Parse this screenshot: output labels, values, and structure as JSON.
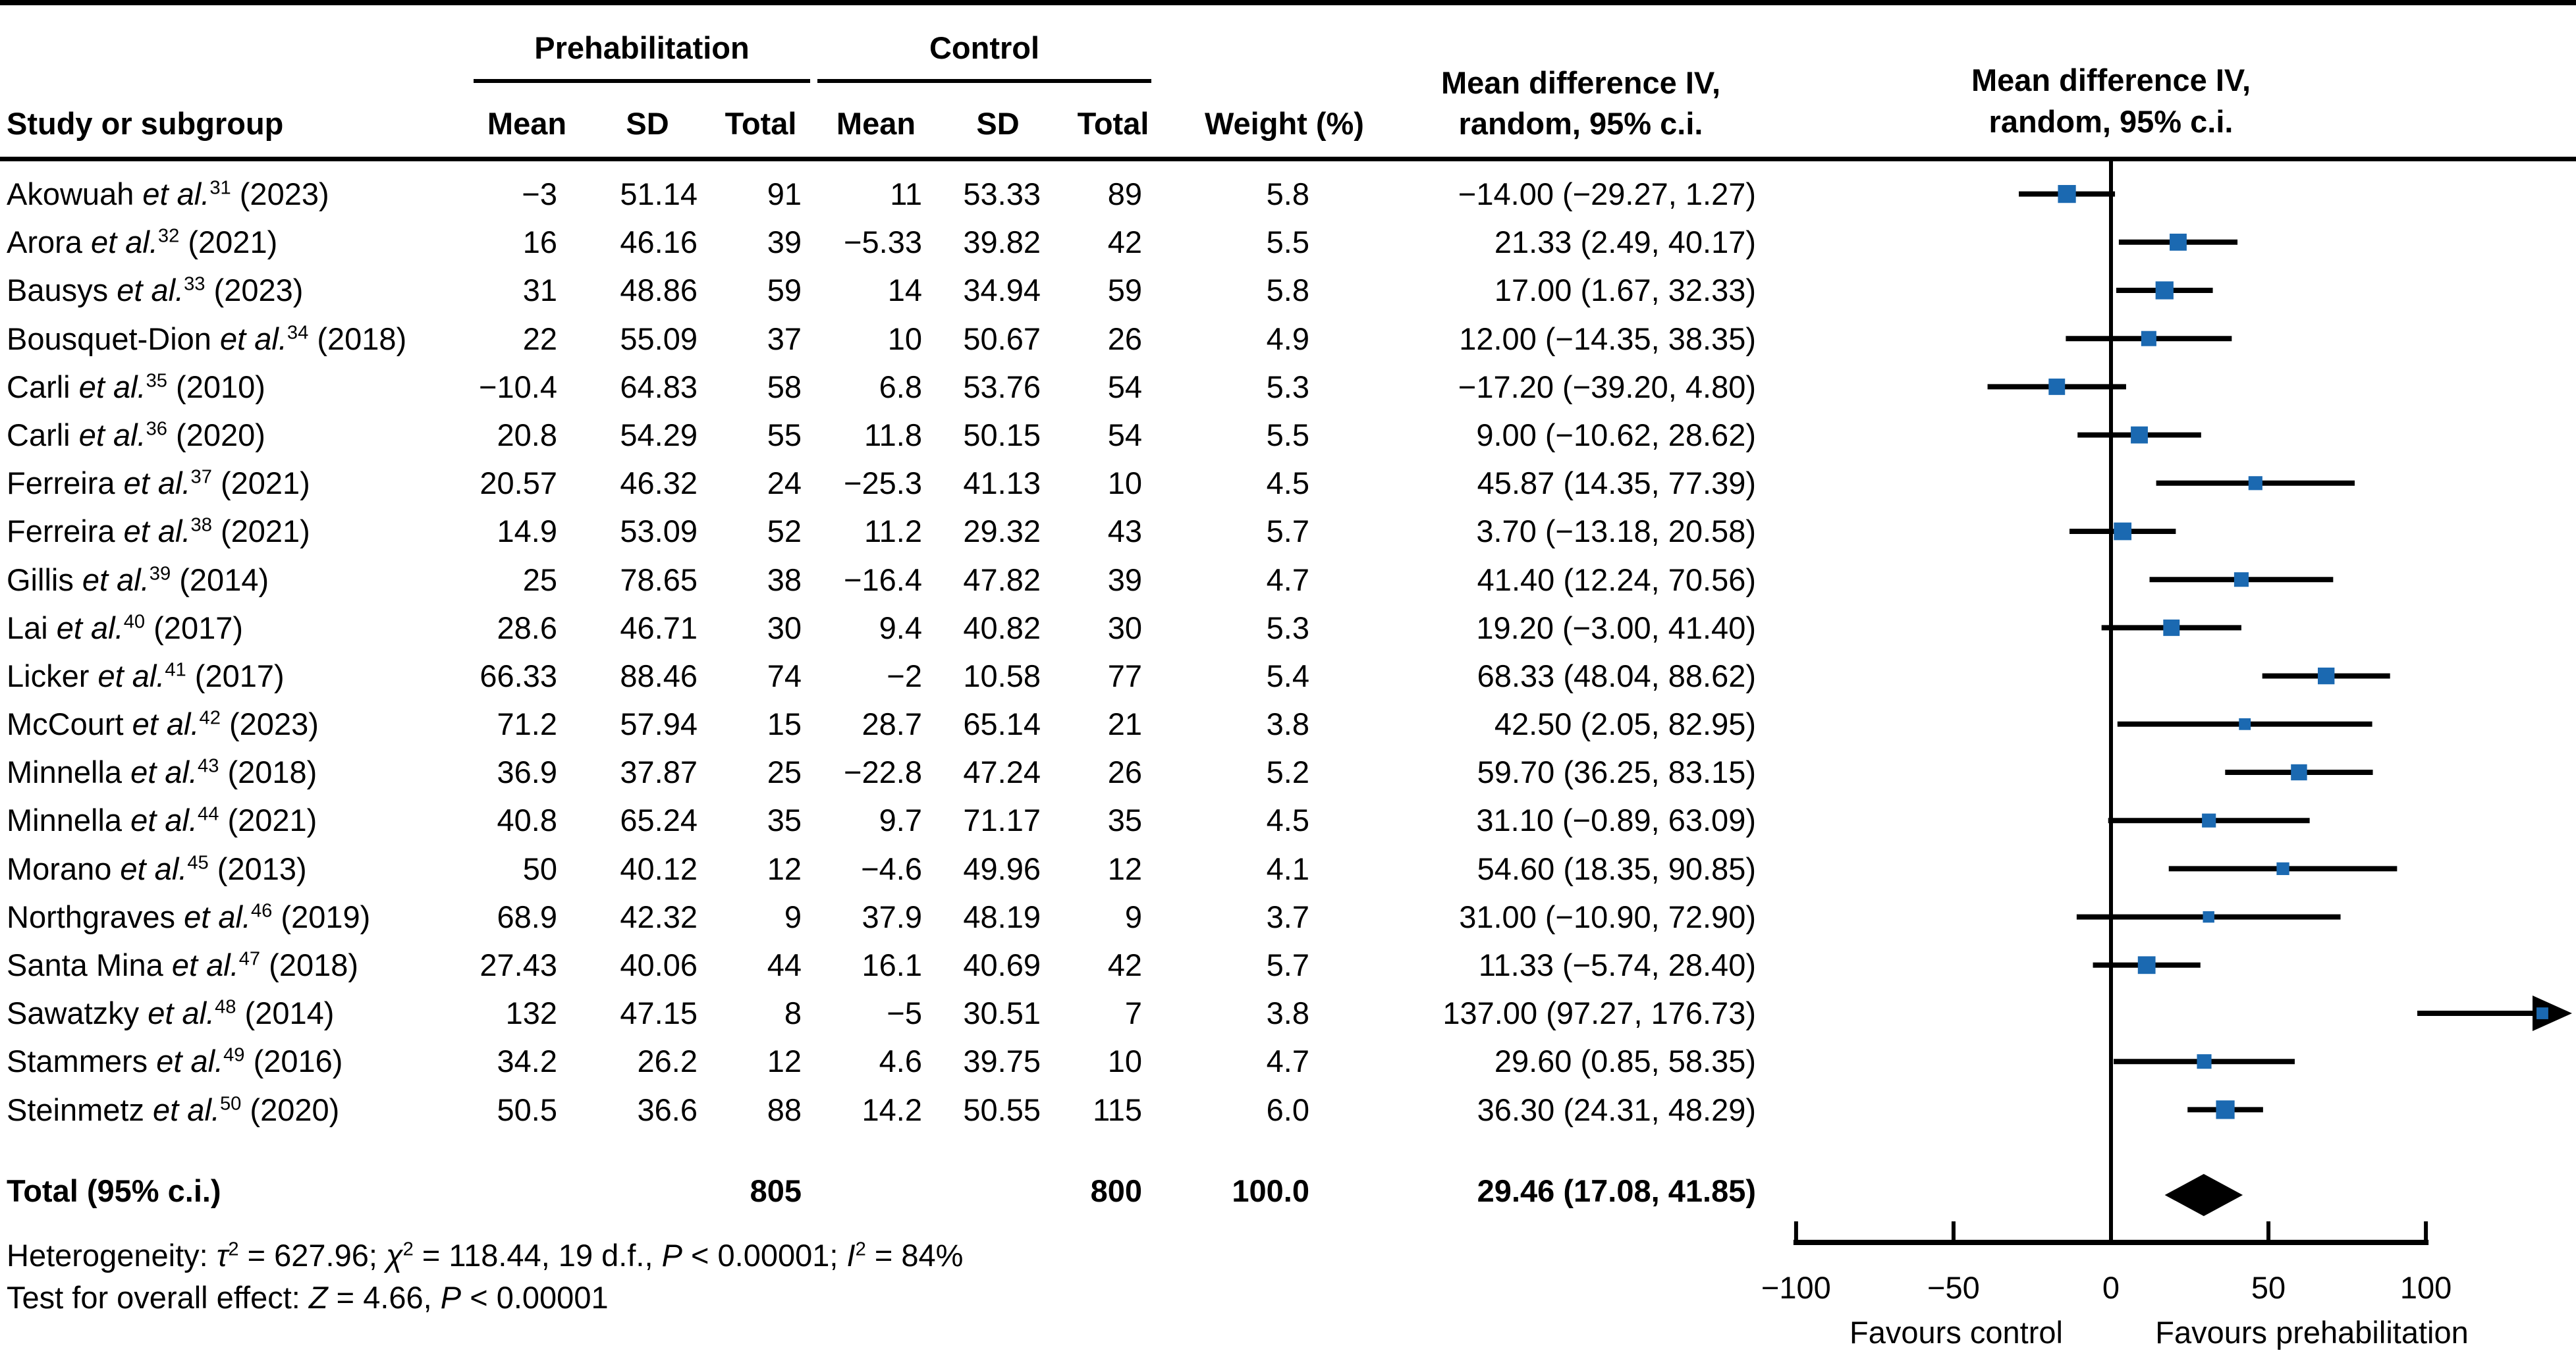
{
  "chart_data": {
    "type": "forest",
    "table_headers": {
      "study": "Study or subgroup",
      "group_prehab": "Prehabilitation",
      "group_control": "Control",
      "mean": "Mean",
      "sd": "SD",
      "total": "Total",
      "weight": "Weight (%)",
      "md_col_line1": "Mean difference IV,",
      "md_col_line2": "random, 95% c.i."
    },
    "plot_header_line1": "Mean difference IV,",
    "plot_header_line2": "random, 95% c.i.",
    "marker_color": "#1b69b1",
    "x_axis": {
      "range": [
        -100,
        100
      ],
      "ticks": [
        -100,
        -50,
        0,
        50,
        100
      ],
      "tick_labels": [
        "−100",
        "−50",
        "0",
        "50",
        "100"
      ],
      "favours_left": "Favours control",
      "favours_right": "Favours prehabilitation"
    },
    "studies": [
      {
        "name": "Akowuah",
        "ref": "31",
        "year": "2023",
        "mean1": "−3",
        "sd1": "51.14",
        "total1": "91",
        "mean2": "11",
        "sd2": "53.33",
        "total2": "89",
        "weight_text": "5.8",
        "md_text": "−14.00 (−29.27, 1.27)",
        "md": -14.0,
        "lo": -29.27,
        "hi": 1.27,
        "weight": 5.8
      },
      {
        "name": "Arora",
        "ref": "32",
        "year": "2021",
        "mean1": "16",
        "sd1": "46.16",
        "total1": "39",
        "mean2": "−5.33",
        "sd2": "39.82",
        "total2": "42",
        "weight_text": "5.5",
        "md_text": "21.33 (2.49, 40.17)",
        "md": 21.33,
        "lo": 2.49,
        "hi": 40.17,
        "weight": 5.5
      },
      {
        "name": "Bausys",
        "ref": "33",
        "year": "2023",
        "mean1": "31",
        "sd1": "48.86",
        "total1": "59",
        "mean2": "14",
        "sd2": "34.94",
        "total2": "59",
        "weight_text": "5.8",
        "md_text": "17.00 (1.67, 32.33)",
        "md": 17.0,
        "lo": 1.67,
        "hi": 32.33,
        "weight": 5.8
      },
      {
        "name": "Bousquet-Dion",
        "ref": "34",
        "year": "2018",
        "mean1": "22",
        "sd1": "55.09",
        "total1": "37",
        "mean2": "10",
        "sd2": "50.67",
        "total2": "26",
        "weight_text": "4.9",
        "md_text": "12.00 (−14.35, 38.35)",
        "md": 12.0,
        "lo": -14.35,
        "hi": 38.35,
        "weight": 4.9
      },
      {
        "name": "Carli",
        "ref": "35",
        "year": "2010",
        "mean1": "−10.4",
        "sd1": "64.83",
        "total1": "58",
        "mean2": "6.8",
        "sd2": "53.76",
        "total2": "54",
        "weight_text": "5.3",
        "md_text": "−17.20 (−39.20, 4.80)",
        "md": -17.2,
        "lo": -39.2,
        "hi": 4.8,
        "weight": 5.3
      },
      {
        "name": "Carli",
        "ref": "36",
        "year": "2020",
        "mean1": "20.8",
        "sd1": "54.29",
        "total1": "55",
        "mean2": "11.8",
        "sd2": "50.15",
        "total2": "54",
        "weight_text": "5.5",
        "md_text": "9.00 (−10.62, 28.62)",
        "md": 9.0,
        "lo": -10.62,
        "hi": 28.62,
        "weight": 5.5
      },
      {
        "name": "Ferreira",
        "ref": "37",
        "year": "2021",
        "mean1": "20.57",
        "sd1": "46.32",
        "total1": "24",
        "mean2": "−25.3",
        "sd2": "41.13",
        "total2": "10",
        "weight_text": "4.5",
        "md_text": "45.87 (14.35, 77.39)",
        "md": 45.87,
        "lo": 14.35,
        "hi": 77.39,
        "weight": 4.5
      },
      {
        "name": "Ferreira",
        "ref": "38",
        "year": "2021",
        "mean1": "14.9",
        "sd1": "53.09",
        "total1": "52",
        "mean2": "11.2",
        "sd2": "29.32",
        "total2": "43",
        "weight_text": "5.7",
        "md_text": "3.70 (−13.18, 20.58)",
        "md": 3.7,
        "lo": -13.18,
        "hi": 20.58,
        "weight": 5.7
      },
      {
        "name": "Gillis",
        "ref": "39",
        "year": "2014",
        "mean1": "25",
        "sd1": "78.65",
        "total1": "38",
        "mean2": "−16.4",
        "sd2": "47.82",
        "total2": "39",
        "weight_text": "4.7",
        "md_text": "41.40 (12.24, 70.56)",
        "md": 41.4,
        "lo": 12.24,
        "hi": 70.56,
        "weight": 4.7
      },
      {
        "name": "Lai",
        "ref": "40",
        "year": "2017",
        "mean1": "28.6",
        "sd1": "46.71",
        "total1": "30",
        "mean2": "9.4",
        "sd2": "40.82",
        "total2": "30",
        "weight_text": "5.3",
        "md_text": "19.20 (−3.00, 41.40)",
        "md": 19.2,
        "lo": -3.0,
        "hi": 41.4,
        "weight": 5.3
      },
      {
        "name": "Licker",
        "ref": "41",
        "year": "2017",
        "mean1": "66.33",
        "sd1": "88.46",
        "total1": "74",
        "mean2": "−2",
        "sd2": "10.58",
        "total2": "77",
        "weight_text": "5.4",
        "md_text": "68.33 (48.04, 88.62)",
        "md": 68.33,
        "lo": 48.04,
        "hi": 88.62,
        "weight": 5.4
      },
      {
        "name": "McCourt",
        "ref": "42",
        "year": "2023",
        "mean1": "71.2",
        "sd1": "57.94",
        "total1": "15",
        "mean2": "28.7",
        "sd2": "65.14",
        "total2": "21",
        "weight_text": "3.8",
        "md_text": "42.50 (2.05, 82.95)",
        "md": 42.5,
        "lo": 2.05,
        "hi": 82.95,
        "weight": 3.8
      },
      {
        "name": "Minnella",
        "ref": "43",
        "year": "2018",
        "mean1": "36.9",
        "sd1": "37.87",
        "total1": "25",
        "mean2": "−22.8",
        "sd2": "47.24",
        "total2": "26",
        "weight_text": "5.2",
        "md_text": "59.70 (36.25, 83.15)",
        "md": 59.7,
        "lo": 36.25,
        "hi": 83.15,
        "weight": 5.2
      },
      {
        "name": "Minnella",
        "ref": "44",
        "year": "2021",
        "mean1": "40.8",
        "sd1": "65.24",
        "total1": "35",
        "mean2": "9.7",
        "sd2": "71.17",
        "total2": "35",
        "weight_text": "4.5",
        "md_text": "31.10 (−0.89, 63.09)",
        "md": 31.1,
        "lo": -0.89,
        "hi": 63.09,
        "weight": 4.5
      },
      {
        "name": "Morano",
        "ref": "45",
        "year": "2013",
        "mean1": "50",
        "sd1": "40.12",
        "total1": "12",
        "mean2": "−4.6",
        "sd2": "49.96",
        "total2": "12",
        "weight_text": "4.1",
        "md_text": "54.60 (18.35, 90.85)",
        "md": 54.6,
        "lo": 18.35,
        "hi": 90.85,
        "weight": 4.1
      },
      {
        "name": "Northgraves",
        "ref": "46",
        "year": "2019",
        "mean1": "68.9",
        "sd1": "42.32",
        "total1": "9",
        "mean2": "37.9",
        "sd2": "48.19",
        "total2": "9",
        "weight_text": "3.7",
        "md_text": "31.00 (−10.90, 72.90)",
        "md": 31.0,
        "lo": -10.9,
        "hi": 72.9,
        "weight": 3.7
      },
      {
        "name": "Santa Mina",
        "ref": "47",
        "year": "2018",
        "mean1": "27.43",
        "sd1": "40.06",
        "total1": "44",
        "mean2": "16.1",
        "sd2": "40.69",
        "total2": "42",
        "weight_text": "5.7",
        "md_text": "11.33 (−5.74, 28.40)",
        "md": 11.33,
        "lo": -5.74,
        "hi": 28.4,
        "weight": 5.7
      },
      {
        "name": "Sawatzky",
        "ref": "48",
        "year": "2014",
        "mean1": "132",
        "sd1": "47.15",
        "total1": "8",
        "mean2": "−5",
        "sd2": "30.51",
        "total2": "7",
        "weight_text": "3.8",
        "md_text": "137.00 (97.27, 176.73)",
        "md": 137.0,
        "lo": 97.27,
        "hi": 176.73,
        "weight": 3.8
      },
      {
        "name": "Stammers",
        "ref": "49",
        "year": "2016",
        "mean1": "34.2",
        "sd1": "26.2",
        "total1": "12",
        "mean2": "4.6",
        "sd2": "39.75",
        "total2": "10",
        "weight_text": "4.7",
        "md_text": "29.60 (0.85, 58.35)",
        "md": 29.6,
        "lo": 0.85,
        "hi": 58.35,
        "weight": 4.7
      },
      {
        "name": "Steinmetz",
        "ref": "50",
        "year": "2020",
        "mean1": "50.5",
        "sd1": "36.6",
        "total1": "88",
        "mean2": "14.2",
        "sd2": "50.55",
        "total2": "115",
        "weight_text": "6.0",
        "md_text": "36.30 (24.31, 48.29)",
        "md": 36.3,
        "lo": 24.31,
        "hi": 48.29,
        "weight": 6.0
      }
    ],
    "total": {
      "label": "Total (95% c.i.)",
      "total1": "805",
      "total2": "800",
      "weight_text": "100.0",
      "md_text": "29.46 (17.08, 41.85)",
      "md": 29.46,
      "lo": 17.08,
      "hi": 41.85
    },
    "footnote1_segments": [
      {
        "t": "Heterogeneity: "
      },
      {
        "t": "τ",
        "i": 1
      },
      {
        "t": "2",
        "sup": 1
      },
      {
        "t": " = 627.96; "
      },
      {
        "t": "χ",
        "i": 1
      },
      {
        "t": "2",
        "sup": 1
      },
      {
        "t": " = 118.44, 19 d.f., "
      },
      {
        "t": "P",
        "i": 1
      },
      {
        "t": " < 0.00001; "
      },
      {
        "t": "I",
        "i": 1
      },
      {
        "t": "2",
        "sup": 1
      },
      {
        "t": " = 84%"
      }
    ],
    "footnote2_segments": [
      {
        "t": "Test for overall effect: "
      },
      {
        "t": "Z",
        "i": 1
      },
      {
        "t": " = 4.66, "
      },
      {
        "t": "P",
        "i": 1
      },
      {
        "t": " < 0.00001"
      }
    ]
  }
}
